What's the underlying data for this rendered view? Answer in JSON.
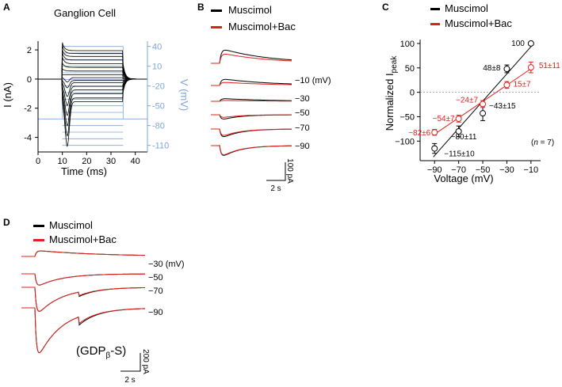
{
  "panels": {
    "A": {
      "letter": "A"
    },
    "B": {
      "letter": "B"
    },
    "C": {
      "letter": "C"
    },
    "D": {
      "letter": "D"
    }
  },
  "colors": {
    "control": "#000000",
    "bac": "#e0201b",
    "voltage_axis": "#7ea6d6"
  },
  "chart_data": [
    {
      "panel": "A",
      "type": "line",
      "title": "Ganglion Cell",
      "xlabel": "Time (ms)",
      "ylabel": "I (nA)",
      "y2label": "V (mV)",
      "xlim": [
        0,
        45
      ],
      "ylim": [
        -5,
        2.6
      ],
      "y2lim": [
        -120,
        48
      ],
      "xticks": [
        "0",
        "10",
        "20",
        "30",
        "40"
      ],
      "yticks": [
        "2",
        "0",
        "-2",
        "-4"
      ],
      "y2ticks": [
        "40",
        "10",
        "-20",
        "-50",
        "-80",
        "-110"
      ],
      "voltage_steps": [
        40,
        30,
        20,
        10,
        0,
        -10,
        -20,
        -30,
        -40,
        -50,
        -60,
        -70,
        -80,
        -90,
        -100,
        -110
      ],
      "holding_potential": -70,
      "step_window_ms": [
        10,
        35
      ],
      "steady_currents_nA": [
        1.95,
        1.75,
        1.55,
        1.3,
        1.05,
        0.8,
        0.55,
        0.3,
        0.1,
        -0.1,
        -0.25,
        -0.5,
        -0.75,
        -1.0,
        -1.3,
        -1.55
      ],
      "peak_currents_nA": [
        2.5,
        2.3,
        2.0,
        1.8,
        1.5,
        1.1,
        0.7,
        0.3,
        -0.2,
        -0.6,
        -1.2,
        -1.8,
        -2.5,
        -3.2,
        -3.9,
        -4.6
      ]
    },
    {
      "panel": "B",
      "type": "line",
      "legend": [
        "Muscimol",
        "Muscimol+Bac"
      ],
      "legend_position": "top",
      "trace_labels": [
        "−10 (mV)",
        "−30",
        "−50",
        "−70",
        "−90"
      ],
      "scalebar_time": "2 s",
      "scalebar_current": "100 pA",
      "series": [
        {
          "name": "Muscimol",
          "peaks_pA": [
            130,
            60,
            25,
            -50,
            -90,
            -115
          ]
        },
        {
          "name": "Muscimol+Bac",
          "peaks_pA": [
            90,
            30,
            8,
            -30,
            -75,
            -112
          ]
        }
      ]
    },
    {
      "panel": "C",
      "type": "scatter",
      "legend": [
        "Muscimol",
        "Muscimol+Bac"
      ],
      "legend_position": "top",
      "xlabel": "Voltage (mV)",
      "ylabel": "Normalized  I",
      "ylabel_sub": "peak",
      "xlim": [
        -102,
        -2
      ],
      "ylim": [
        -140,
        108
      ],
      "xticks": [
        "−90",
        "−70",
        "−50",
        "−30",
        "−10"
      ],
      "yticks": [
        "100",
        "50",
        "0",
        "−50",
        "−100"
      ],
      "n_label_pre": "(",
      "n_label_n": "n",
      "n_label_post": " = 7)",
      "series": [
        {
          "name": "Muscimol",
          "x": [
            -90,
            -70,
            -50,
            -30,
            -10
          ],
          "y": [
            -115,
            -80,
            -43,
            48,
            100
          ],
          "err": [
            10,
            11,
            15,
            8,
            0
          ],
          "labels": [
            "−115±10",
            "−80±11",
            "−43±15",
            "48±8",
            "100"
          ]
        },
        {
          "name": "Muscimol+Bac",
          "x": [
            -90,
            -70,
            -50,
            -30,
            -10
          ],
          "y": [
            -82,
            -54,
            -24,
            15,
            51
          ],
          "err": [
            6,
            7,
            7,
            7,
            11
          ],
          "labels": [
            "−82±6",
            "−54±7",
            "−24±7",
            "15±7",
            "51±11"
          ]
        }
      ]
    },
    {
      "panel": "D",
      "type": "line",
      "legend": [
        "Muscimol",
        "Muscimol+Bac"
      ],
      "legend_position": "top",
      "trace_labels": [
        "−30 (mV)",
        "−50",
        "−70",
        "−90"
      ],
      "annotation_pre": "(GDP",
      "annotation_sub": "β",
      "annotation_post": "-S)",
      "scalebar_time": "2 s",
      "scalebar_current": "200 pA",
      "series": [
        {
          "name": "Muscimol",
          "peaks_pA": [
            15,
            -35,
            -75,
            -140
          ]
        },
        {
          "name": "Muscimol+Bac",
          "peaks_pA": [
            15,
            -35,
            -75,
            -140
          ]
        }
      ]
    }
  ]
}
